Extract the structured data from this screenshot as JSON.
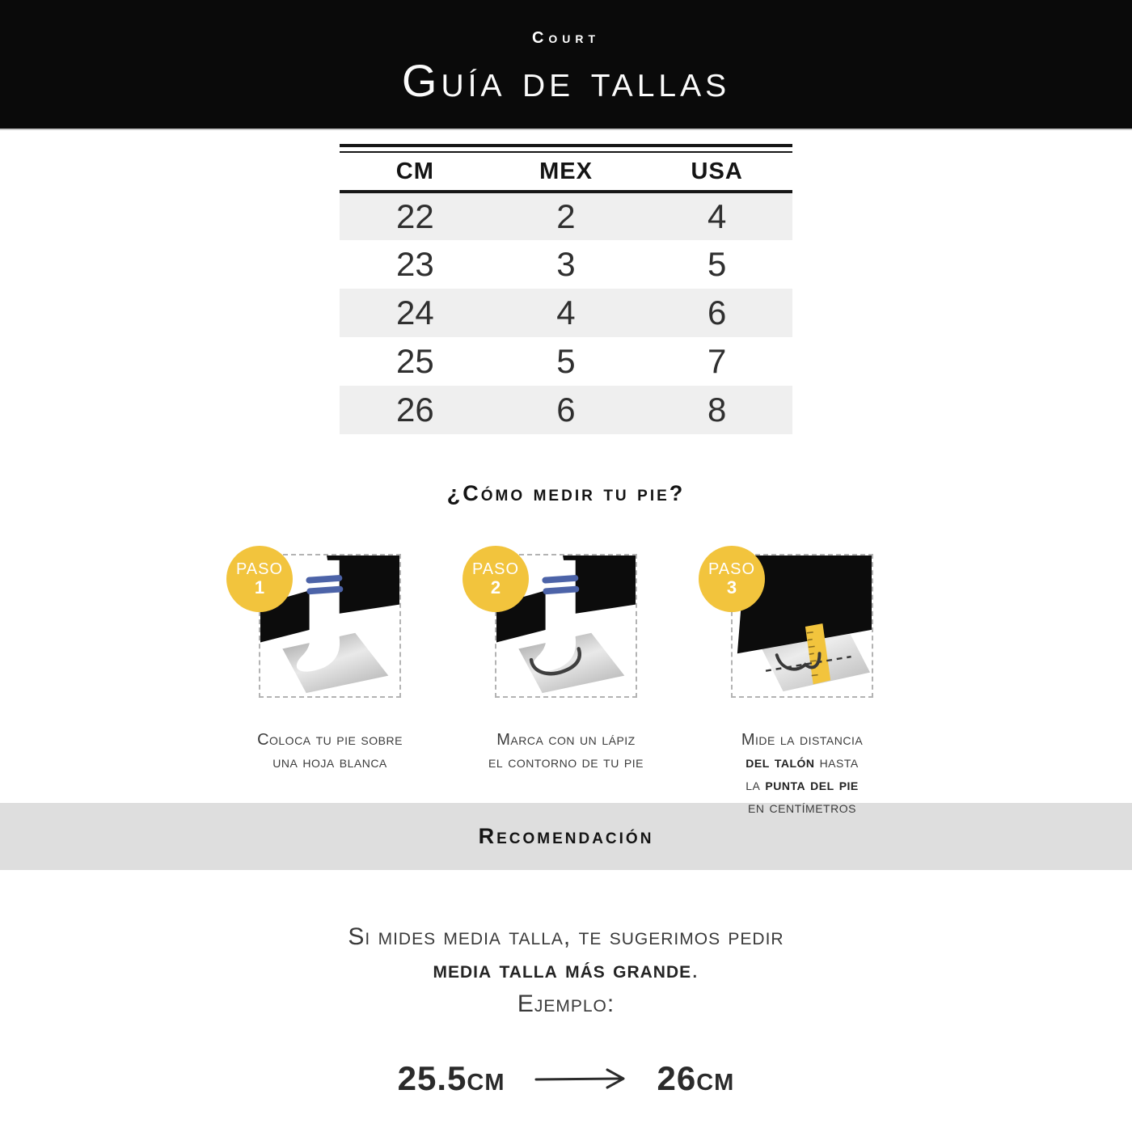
{
  "brand": {
    "logo": "Court"
  },
  "header": {
    "title": "Guía de tallas"
  },
  "size_table": {
    "columns": [
      "CM",
      "MEX",
      "USA"
    ],
    "rows": [
      [
        "22",
        "2",
        "4"
      ],
      [
        "23",
        "3",
        "5"
      ],
      [
        "24",
        "4",
        "6"
      ],
      [
        "25",
        "5",
        "7"
      ],
      [
        "26",
        "6",
        "8"
      ]
    ]
  },
  "how_to": {
    "title": "¿Cómo medir tu pie?",
    "steps": [
      {
        "badge_label": "PASO",
        "badge_number": "1",
        "illustration": "foot-on-paper",
        "caption": [
          {
            "t": "Coloca tu pie sobre",
            "b": false,
            "br": true
          },
          {
            "t": "una hoja blanca",
            "b": false,
            "br": false
          }
        ]
      },
      {
        "badge_label": "PASO",
        "badge_number": "2",
        "illustration": "pencil-outline-of-foot",
        "caption": [
          {
            "t": "Marca con un lápiz",
            "b": false,
            "br": true
          },
          {
            "t": "el contorno de tu pie",
            "b": false,
            "br": false
          }
        ]
      },
      {
        "badge_label": "PASO",
        "badge_number": "3",
        "illustration": "measure-tape-on-outline",
        "caption": [
          {
            "t": "Mide la distancia",
            "b": false,
            "br": true
          },
          {
            "t": "del talón",
            "b": true,
            "br": false
          },
          {
            "t": " hasta",
            "b": false,
            "br": true
          },
          {
            "t": "la ",
            "b": false,
            "br": false
          },
          {
            "t": "punta del pie",
            "b": true,
            "br": true
          },
          {
            "t": "en centímetros",
            "b": false,
            "br": false
          }
        ]
      }
    ]
  },
  "recommendation": {
    "title": "Recomendación",
    "line1": "Si mides media talla, te sugerimos pedir",
    "line2_bold": "media talla más grande",
    "line2_suffix": ".",
    "line3": "Ejemplo:",
    "example_from": "25.5cm",
    "example_to": "26cm"
  },
  "colors": {
    "header_bg": "#0A0A0A",
    "badge_yellow": "#F2C43D",
    "sock_stripe_blue": "#4C63A8",
    "row_gray": "#EFEFEF",
    "bar_gray": "#DEDEDE",
    "text_dark": "#2E2E2E"
  }
}
